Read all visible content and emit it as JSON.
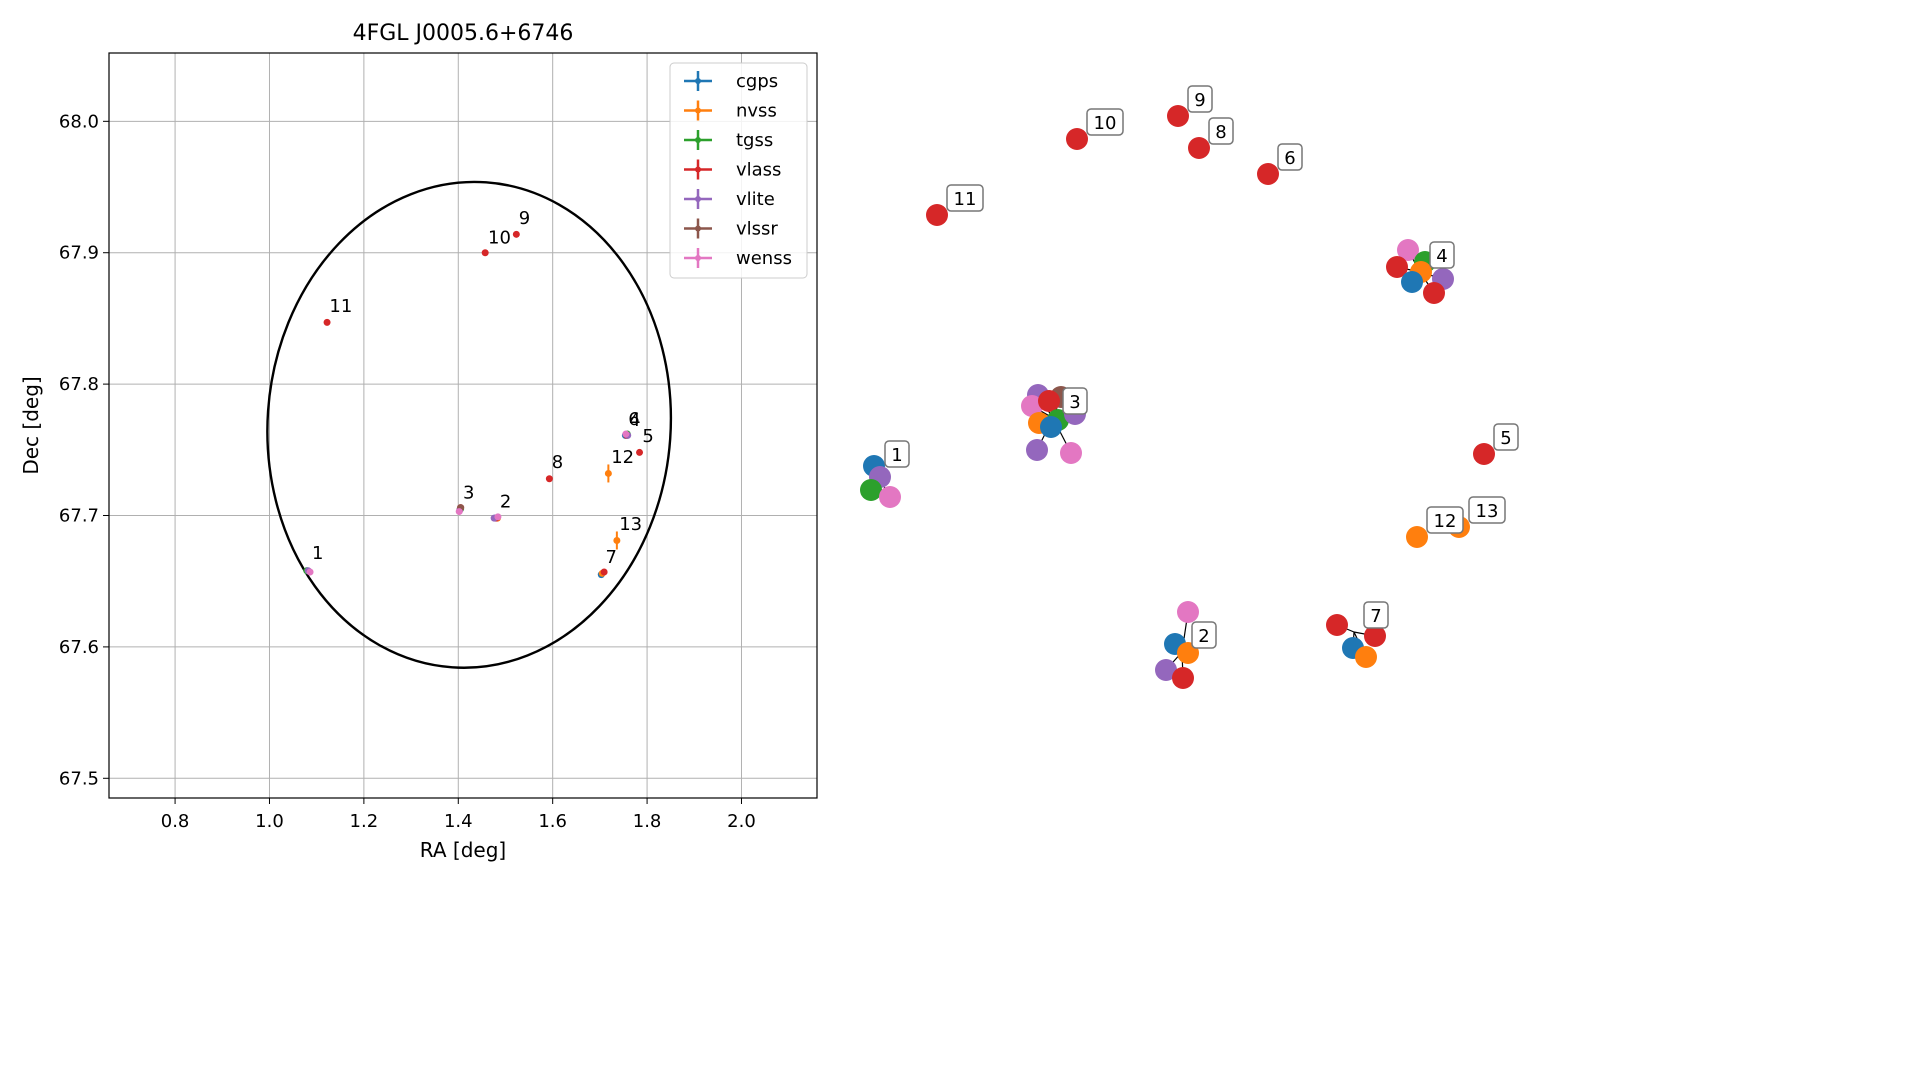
{
  "chart_data": [
    {
      "type": "scatter",
      "title": "4FGL J0005.6+6746",
      "xlabel": "RA [deg]",
      "ylabel": "Dec [deg]",
      "xlim": [
        0.66,
        2.16
      ],
      "ylim": [
        67.485,
        68.052
      ],
      "xticks": [
        0.8,
        1.0,
        1.2,
        1.4,
        1.6,
        1.8,
        2.0
      ],
      "yticks": [
        67.5,
        67.6,
        67.7,
        67.8,
        67.9,
        68.0
      ],
      "xtick_labels": [
        "0.8",
        "1.0",
        "1.2",
        "1.4",
        "1.6",
        "1.8",
        "2.0"
      ],
      "ytick_labels": [
        "67.5",
        "67.6",
        "67.7",
        "67.8",
        "67.9",
        "68.0"
      ],
      "grid": true,
      "legend_position": "top-right",
      "colors": {
        "cgps": "#1f77b4",
        "nvss": "#ff7f0e",
        "tgss": "#2ca02c",
        "vlass": "#d62728",
        "vlite": "#9467bd",
        "vlssr": "#8c564b",
        "wenss": "#e377c2"
      },
      "series": [
        {
          "name": "cgps",
          "points": [
            [
              1.08,
              67.658
            ],
            [
              1.478,
              67.698
            ],
            [
              1.703,
              67.655
            ],
            [
              1.754,
              67.761
            ],
            [
              1.404,
              67.705
            ]
          ]
        },
        {
          "name": "nvss",
          "points": [
            [
              1.483,
              67.698
            ],
            [
              1.705,
              67.656
            ],
            [
              1.757,
              67.761
            ],
            [
              1.404,
              67.705
            ],
            [
              1.718,
              67.732
            ],
            [
              1.736,
              67.681
            ]
          ]
        },
        {
          "name": "tgss",
          "points": [
            [
              1.079,
              67.658
            ],
            [
              1.758,
              67.762
            ],
            [
              1.405,
              67.705
            ]
          ]
        },
        {
          "name": "vlass",
          "points": [
            [
              1.122,
              67.847
            ],
            [
              1.457,
              67.9
            ],
            [
              1.523,
              67.914
            ],
            [
              1.593,
              67.728
            ],
            [
              1.784,
              67.748
            ],
            [
              1.757,
              67.761
            ],
            [
              1.709,
              67.657
            ],
            [
              1.48,
              67.698
            ],
            [
              1.405,
              67.706
            ]
          ]
        },
        {
          "name": "vlite",
          "points": [
            [
              1.082,
              67.658
            ],
            [
              1.476,
              67.698
            ],
            [
              1.759,
              67.761
            ],
            [
              1.403,
              67.704
            ]
          ]
        },
        {
          "name": "vlssr",
          "points": [
            [
              1.405,
              67.706
            ]
          ]
        },
        {
          "name": "wenss",
          "points": [
            [
              1.086,
              67.657
            ],
            [
              1.484,
              67.699
            ],
            [
              1.755,
              67.762
            ],
            [
              1.402,
              67.703
            ]
          ]
        }
      ],
      "annotations": [
        {
          "text": "1",
          "x": 1.09,
          "y": 67.667
        },
        {
          "text": "2",
          "x": 1.488,
          "y": 67.706
        },
        {
          "text": "3",
          "x": 1.41,
          "y": 67.713
        },
        {
          "text": "4",
          "x": 1.762,
          "y": 67.768
        },
        {
          "text": "5",
          "x": 1.79,
          "y": 67.756
        },
        {
          "text": "6",
          "x": 1.76,
          "y": 67.769
        },
        {
          "text": "7",
          "x": 1.712,
          "y": 67.664
        },
        {
          "text": "8",
          "x": 1.598,
          "y": 67.736
        },
        {
          "text": "9",
          "x": 1.528,
          "y": 67.922
        },
        {
          "text": "10",
          "x": 1.463,
          "y": 67.907
        },
        {
          "text": "11",
          "x": 1.127,
          "y": 67.855
        },
        {
          "text": "12",
          "x": 1.724,
          "y": 67.74
        },
        {
          "text": "13",
          "x": 1.741,
          "y": 67.689
        }
      ],
      "ellipse": {
        "ra_center": 1.423,
        "dec_center": 67.769,
        "ra_semi_axis": 0.427,
        "dec_semi_axis": 0.185,
        "rotation_deg": 4
      }
    },
    {
      "type": "scatter",
      "title": "",
      "xlabel": "",
      "ylabel": "",
      "axes": "off",
      "clusters": [
        {
          "label": "1",
          "center": [
            875,
            471
          ],
          "members": [
            [
              "cgps",
              874,
              466
            ],
            [
              "vlite",
              880,
              477
            ],
            [
              "tgss",
              871,
              490
            ],
            [
              "wenss",
              890,
              497
            ]
          ]
        },
        {
          "label": "2",
          "center": [
            1182,
            652
          ],
          "members": [
            [
              "wenss",
              1188,
              612
            ],
            [
              "cgps",
              1175,
              644
            ],
            [
              "nvss",
              1188,
              653
            ],
            [
              "vlite",
              1166,
              670
            ],
            [
              "vlass",
              1183,
              678
            ]
          ]
        },
        {
          "label": "3",
          "center": [
            1053,
            418
          ],
          "members": [
            [
              "vlite",
              1038,
              395
            ],
            [
              "vlssr",
              1061,
              397
            ],
            [
              "wenss",
              1032,
              406
            ],
            [
              "vlass",
              1049,
              401
            ],
            [
              "nvss",
              1039,
              423
            ],
            [
              "tgss",
              1058,
              420
            ],
            [
              "cgps",
              1051,
              427
            ],
            [
              "vlite",
              1075,
              414
            ],
            [
              "vlite",
              1037,
              450
            ],
            [
              "wenss",
              1071,
              453
            ]
          ]
        },
        {
          "label": "4",
          "center": [
            1420,
            272
          ],
          "members": [
            [
              "wenss",
              1408,
              250
            ],
            [
              "tgss",
              1425,
              262
            ],
            [
              "vlass",
              1397,
              267
            ],
            [
              "nvss",
              1421,
              272
            ],
            [
              "vlite",
              1443,
              279
            ],
            [
              "cgps",
              1412,
              282
            ],
            [
              "vlass",
              1434,
              293
            ]
          ]
        },
        {
          "label": "5",
          "center": [
            1484,
            454
          ],
          "members": [
            [
              "vlass",
              1484,
              454
            ]
          ]
        },
        {
          "label": "6",
          "center": [
            1268,
            174
          ],
          "members": [
            [
              "vlass",
              1268,
              174
            ]
          ]
        },
        {
          "label": "7",
          "center": [
            1354,
            632
          ],
          "members": [
            [
              "vlass",
              1337,
              625
            ],
            [
              "vlass",
              1375,
              636
            ],
            [
              "cgps",
              1353,
              648
            ],
            [
              "nvss",
              1366,
              657
            ]
          ]
        },
        {
          "label": "8",
          "center": [
            1199,
            148
          ],
          "members": [
            [
              "vlass",
              1199,
              148
            ]
          ]
        },
        {
          "label": "9",
          "center": [
            1178,
            116
          ],
          "members": [
            [
              "vlass",
              1178,
              116
            ]
          ]
        },
        {
          "label": "10",
          "center": [
            1077,
            139
          ],
          "members": [
            [
              "vlass",
              1077,
              139
            ]
          ]
        },
        {
          "label": "11",
          "center": [
            937,
            215
          ],
          "members": [
            [
              "vlass",
              937,
              215
            ]
          ]
        },
        {
          "label": "12",
          "center": [
            1417,
            537
          ],
          "members": [
            [
              "nvss",
              1417,
              537
            ]
          ]
        },
        {
          "label": "13",
          "center": [
            1459,
            527
          ],
          "members": [
            [
              "nvss",
              1459,
              527
            ]
          ]
        }
      ]
    }
  ]
}
